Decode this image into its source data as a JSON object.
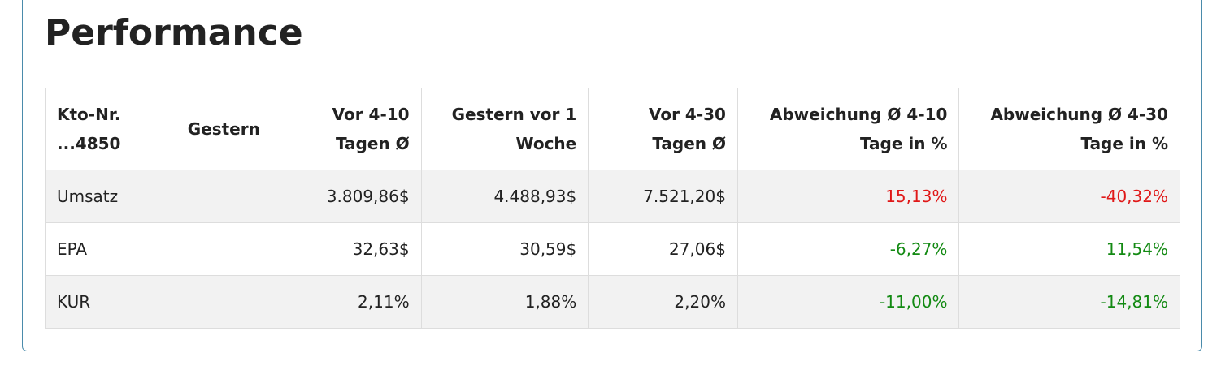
{
  "title": "Performance",
  "colors": {
    "card_border": "#4a8bab",
    "negative_red": "#e01818",
    "positive_green": "#138a13",
    "stripe": "#f2f2f2"
  },
  "table": {
    "headers": [
      "Kto-Nr.\n...4850",
      "Gestern",
      "Vor 4-10\nTagen Ø",
      "Gestern vor 1\nWoche",
      "Vor 4-30\nTagen Ø",
      "Abweichung Ø 4-10\nTage in %",
      "Abweichung Ø 4-30\nTage in %"
    ],
    "rows": [
      {
        "label": "Umsatz",
        "gestern": "",
        "vor_4_10": "3.809,86$",
        "gestern_vor_1_woche": "4.488,93$",
        "vor_4_30": "7.521,20$",
        "abw_4_10": "15,13%",
        "abw_4_10_status": "red",
        "abw_4_30": "-40,32%",
        "abw_4_30_status": "red"
      },
      {
        "label": "EPA",
        "gestern": "",
        "vor_4_10": "32,63$",
        "gestern_vor_1_woche": "30,59$",
        "vor_4_30": "27,06$",
        "abw_4_10": "-6,27%",
        "abw_4_10_status": "green",
        "abw_4_30": "11,54%",
        "abw_4_30_status": "green"
      },
      {
        "label": "KUR",
        "gestern": "",
        "vor_4_10": "2,11%",
        "gestern_vor_1_woche": "1,88%",
        "vor_4_30": "2,20%",
        "abw_4_10": "-11,00%",
        "abw_4_10_status": "green",
        "abw_4_30": "-14,81%",
        "abw_4_30_status": "green"
      }
    ]
  }
}
